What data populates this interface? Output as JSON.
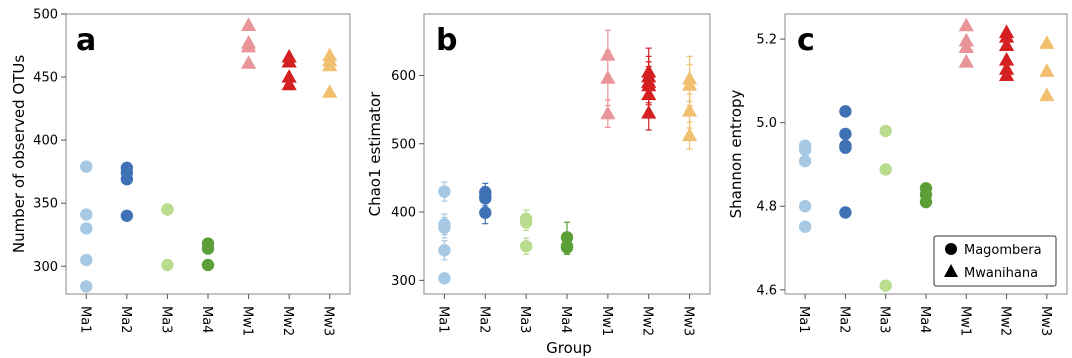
{
  "figure": {
    "xlabel": "Group",
    "legend": [
      {
        "name": "Magombera",
        "marker": "circle"
      },
      {
        "name": "Mwanihana",
        "marker": "triangle"
      }
    ]
  },
  "groups": [
    {
      "name": "Ma1",
      "color": "#a6c8e2",
      "marker": "circle"
    },
    {
      "name": "Ma2",
      "color": "#3f72b4",
      "marker": "circle"
    },
    {
      "name": "Ma3",
      "color": "#b9dc8e",
      "marker": "circle"
    },
    {
      "name": "Ma4",
      "color": "#5c9e38",
      "marker": "circle"
    },
    {
      "name": "Mw1",
      "color": "#e99498",
      "marker": "triangle"
    },
    {
      "name": "Mw2",
      "color": "#d42020",
      "marker": "triangle"
    },
    {
      "name": "Mw3",
      "color": "#f0c070",
      "marker": "triangle"
    }
  ],
  "chart_data": [
    {
      "type": "scatter",
      "panel": "a",
      "ylabel": "Number of observed OTUs",
      "ylim": [
        278,
        500
      ],
      "yticks": [
        300,
        350,
        400,
        450,
        500
      ],
      "categories": [
        "Ma1",
        "Ma2",
        "Ma3",
        "Ma4",
        "Mw1",
        "Mw2",
        "Mw3"
      ],
      "series": [
        {
          "values": [
            379,
            341,
            330,
            305,
            284
          ]
        },
        {
          "values": [
            378,
            374,
            369,
            340
          ]
        },
        {
          "values": [
            345,
            345,
            301
          ]
        },
        {
          "values": [
            318,
            314,
            301
          ]
        },
        {
          "values": [
            491,
            477,
            474,
            461
          ]
        },
        {
          "values": [
            466,
            462,
            450,
            444
          ]
        },
        {
          "values": [
            467,
            463,
            459,
            438
          ]
        }
      ]
    },
    {
      "type": "scatter",
      "panel": "b",
      "ylabel": "Chao1 estimator",
      "ylim": [
        280,
        690
      ],
      "yticks": [
        300,
        400,
        500,
        600
      ],
      "categories": [
        "Ma1",
        "Ma2",
        "Ma3",
        "Ma4",
        "Mw1",
        "Mw2",
        "Mw3"
      ],
      "error_bars": true,
      "series": [
        {
          "values": [
            430,
            382,
            377,
            344,
            303
          ],
          "err": [
            14,
            15,
            15,
            14,
            6
          ]
        },
        {
          "values": [
            429,
            423,
            420,
            399
          ],
          "err": [
            13,
            14,
            14,
            16
          ]
        },
        {
          "values": [
            390,
            385,
            350
          ],
          "err": [
            13,
            12,
            12
          ]
        },
        {
          "values": [
            363,
            350,
            348
          ],
          "err": [
            22,
            12,
            10
          ]
        },
        {
          "values": [
            630,
            596,
            544
          ],
          "err": [
            36,
            40,
            20
          ]
        },
        {
          "values": [
            605,
            598,
            590,
            585,
            572,
            545
          ],
          "err": [
            35,
            30,
            30,
            28,
            30,
            25
          ]
        },
        {
          "values": [
            595,
            586,
            548,
            512
          ],
          "err": [
            33,
            30,
            25,
            20
          ]
        }
      ]
    },
    {
      "type": "scatter",
      "panel": "c",
      "ylabel": "Shannon entropy",
      "ylim": [
        4.59,
        5.26
      ],
      "yticks": [
        4.6,
        4.8,
        5.0,
        5.2
      ],
      "categories": [
        "Ma1",
        "Ma2",
        "Ma3",
        "Ma4",
        "Mw1",
        "Mw2",
        "Mw3"
      ],
      "series": [
        {
          "values": [
            4.945,
            4.935,
            4.908,
            4.8,
            4.751
          ]
        },
        {
          "values": [
            5.027,
            4.973,
            4.945,
            4.94,
            4.785
          ]
        },
        {
          "values": [
            4.98,
            4.888,
            4.61
          ]
        },
        {
          "values": [
            4.843,
            4.828,
            4.81
          ]
        },
        {
          "values": [
            5.232,
            5.196,
            5.18,
            5.145
          ]
        },
        {
          "values": [
            5.216,
            5.205,
            5.185,
            5.15,
            5.128,
            5.113
          ]
        },
        {
          "values": [
            5.19,
            5.123,
            5.065
          ]
        }
      ]
    }
  ]
}
